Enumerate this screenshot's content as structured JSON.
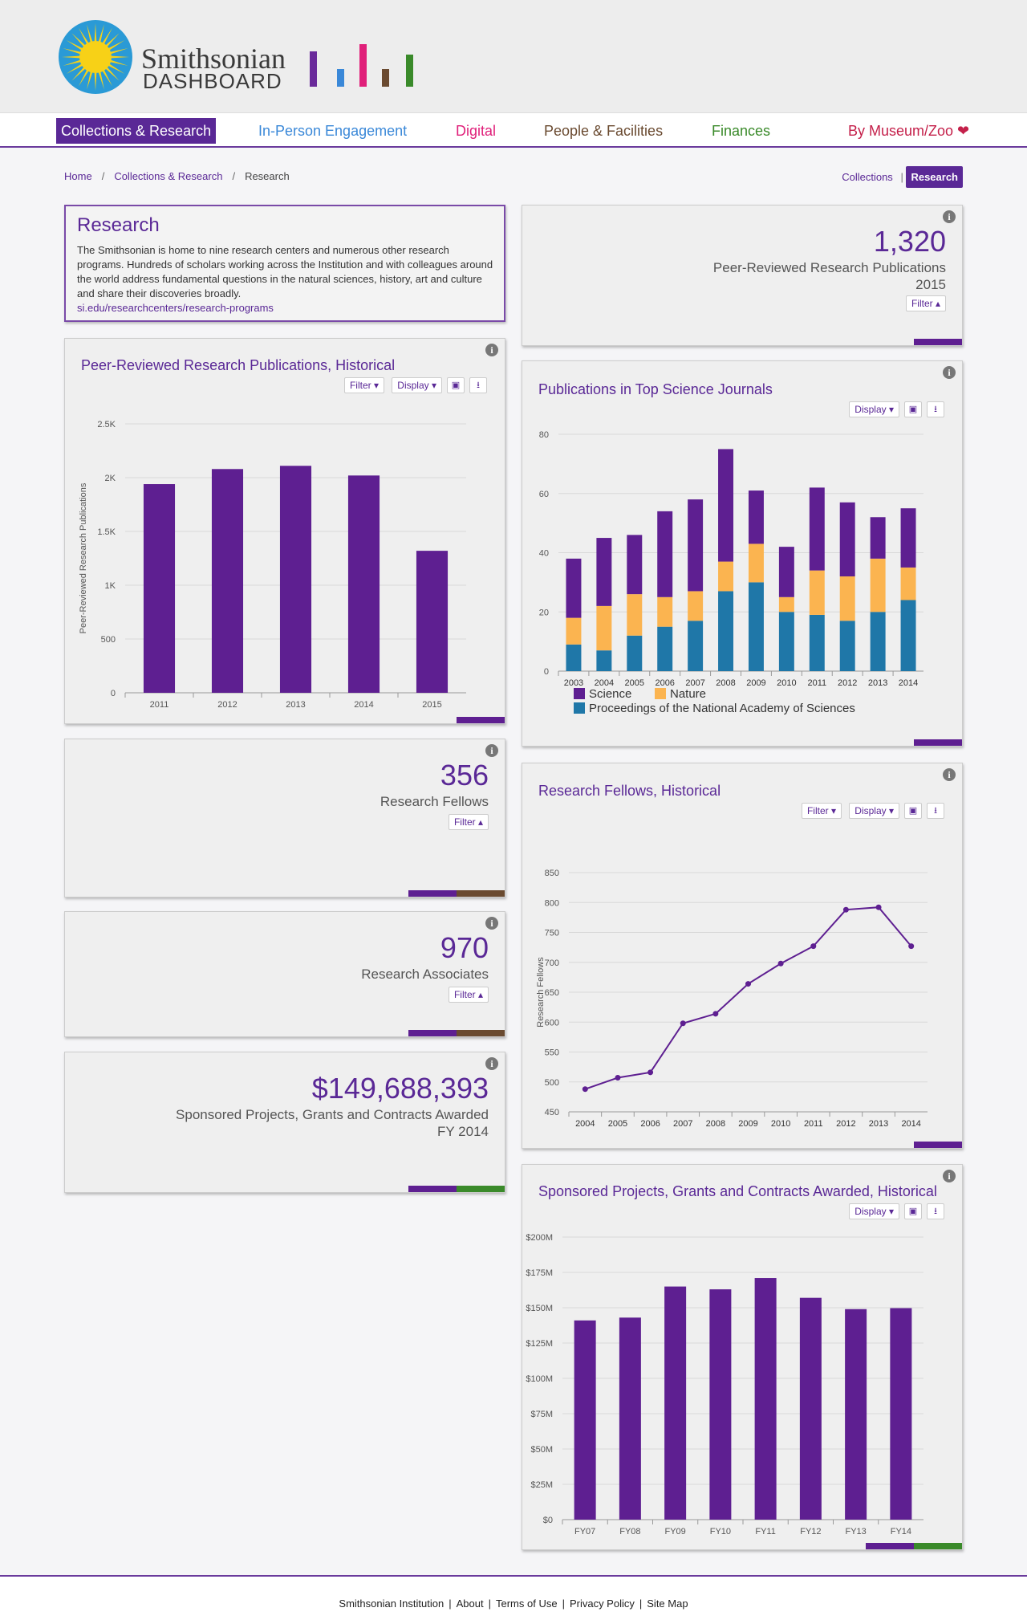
{
  "header": {
    "logo_word1": "Smithsonian",
    "logo_word2": "DASHBOARD",
    "logo_bar_colors": [
      "#6a2a9a",
      "#3a88d8",
      "#e0207a",
      "#6a4a30",
      "#3a8a2a"
    ],
    "logo_bar_levels": [
      1.0,
      0.5,
      1.2,
      0.5,
      0.9
    ]
  },
  "nav": {
    "items": [
      {
        "label": "Collections & Research",
        "color": "#ffffff",
        "active": true
      },
      {
        "label": "In-Person Engagement",
        "color": "#3a88d8"
      },
      {
        "label": "Digital",
        "color": "#e0207a"
      },
      {
        "label": "People & Facilities",
        "color": "#6a4a30"
      },
      {
        "label": "Finances",
        "color": "#3a8a2a"
      },
      {
        "label": "By Museum/Zoo ❤",
        "color": "#c4204a"
      }
    ]
  },
  "breadcrumb": {
    "home": "Home",
    "section": "Collections & Research",
    "current": "Research",
    "sep": "/"
  },
  "subtabs": {
    "collections": "Collections",
    "sep": "|",
    "research": "Research"
  },
  "intro": {
    "title": "Research",
    "body": "The Smithsonian is home to nine research centers and numerous other research programs. Hundreds of scholars working across the Institution and with colleagues around the world address fundamental questions in the natural sciences, history, art and culture and share their discoveries broadly.",
    "link": "si.edu/researchcenters/research-programs"
  },
  "kpis": {
    "pubs": {
      "value": "1,320",
      "label": "Peer-Reviewed Research Publications",
      "sub": "2015",
      "filter": "Filter ▴"
    },
    "fellows": {
      "value": "356",
      "label": "Research Fellows",
      "filter": "Filter ▴"
    },
    "associates": {
      "value": "970",
      "label": "Research Associates",
      "filter": "Filter ▴"
    },
    "sponsored": {
      "value": "$149,688,393",
      "label": "Sponsored Projects, Grants and Contracts Awarded",
      "sub": "FY 2014"
    }
  },
  "buttons": {
    "filter": "Filter ▾",
    "display": "Display ▾",
    "info": "i",
    "image": "▣",
    "download": "⭳"
  },
  "accent": {
    "purple": "#5e1f91",
    "brown": "#6a4a30",
    "green": "#3a8a2a"
  },
  "chart_data": [
    {
      "id": "pubs-historical",
      "type": "bar",
      "title": "Peer-Reviewed Research Publications, Historical",
      "ylabel": "Peer-Reviewed Research Publications",
      "categories": [
        "2011",
        "2012",
        "2013",
        "2014",
        "2015"
      ],
      "values": [
        1940,
        2080,
        2110,
        2020,
        1320
      ],
      "ylim": [
        0,
        2500
      ],
      "yticks": [
        "0",
        "500",
        "1K",
        "1.5K",
        "2K",
        "2.5K"
      ],
      "color": "#5e1f91"
    },
    {
      "id": "journals",
      "type": "bar",
      "stacked": true,
      "title": "Publications in Top Science Journals",
      "categories": [
        "2003",
        "2004",
        "2005",
        "2006",
        "2007",
        "2008",
        "2009",
        "2010",
        "2011",
        "2012",
        "2013",
        "2014"
      ],
      "series": [
        {
          "name": "Proceedings of the National Academy of Sciences",
          "color": "#1f77a8",
          "values": [
            9,
            7,
            12,
            15,
            17,
            27,
            30,
            20,
            19,
            17,
            20,
            24
          ]
        },
        {
          "name": "Nature",
          "color": "#fbb450",
          "values": [
            9,
            15,
            14,
            10,
            10,
            10,
            13,
            5,
            15,
            15,
            18,
            11
          ]
        },
        {
          "name": "Science",
          "color": "#5e1f91",
          "values": [
            20,
            23,
            20,
            29,
            31,
            38,
            18,
            17,
            28,
            25,
            14,
            20
          ]
        }
      ],
      "legend_order": [
        "Science",
        "Nature",
        "Proceedings of the National Academy of Sciences"
      ],
      "ylim": [
        0,
        80
      ],
      "yticks": [
        "0",
        "20",
        "40",
        "60",
        "80"
      ]
    },
    {
      "id": "fellows-historical",
      "type": "line",
      "title": "Research Fellows, Historical",
      "ylabel": "Research Fellows",
      "categories": [
        "2004",
        "2005",
        "2006",
        "2007",
        "2008",
        "2009",
        "2010",
        "2011",
        "2012",
        "2013",
        "2014"
      ],
      "values": [
        488,
        507,
        516,
        598,
        614,
        664,
        698,
        727,
        788,
        792,
        727
      ],
      "ylim": [
        450,
        850
      ],
      "yticks": [
        "450",
        "500",
        "550",
        "600",
        "650",
        "700",
        "750",
        "800",
        "850"
      ],
      "color": "#5e1f91"
    },
    {
      "id": "sponsored-historical",
      "type": "bar",
      "title": "Sponsored Projects, Grants and Contracts Awarded, Historical",
      "categories": [
        "FY07",
        "FY08",
        "FY09",
        "FY10",
        "FY11",
        "FY12",
        "FY13",
        "FY14"
      ],
      "values": [
        141,
        143,
        165,
        163,
        171,
        157,
        149,
        149.7
      ],
      "ylim": [
        0,
        200
      ],
      "yticks": [
        "$0",
        "$25M",
        "$50M",
        "$75M",
        "$100M",
        "$125M",
        "$150M",
        "$175M",
        "$200M"
      ],
      "color": "#5e1f91"
    }
  ],
  "footer": {
    "links": [
      "Smithsonian Institution",
      "About",
      "Terms of Use",
      "Privacy Policy",
      "Site Map"
    ],
    "sep": "|"
  }
}
